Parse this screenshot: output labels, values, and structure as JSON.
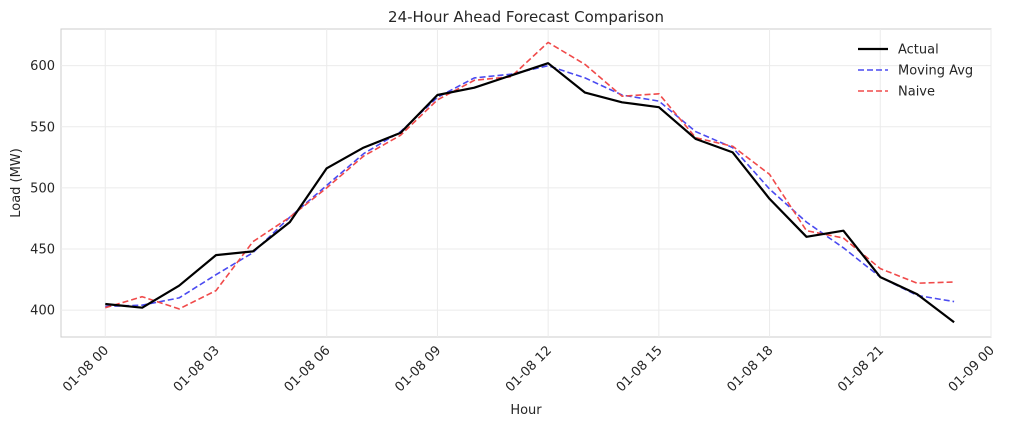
{
  "chart_data": {
    "type": "line",
    "title": "24-Hour Ahead Forecast Comparison",
    "xlabel": "Hour",
    "ylabel": "Load (MW)",
    "x": [
      "01-08 00",
      "01-08 01",
      "01-08 02",
      "01-08 03",
      "01-08 04",
      "01-08 05",
      "01-08 06",
      "01-08 07",
      "01-08 08",
      "01-08 09",
      "01-08 10",
      "01-08 11",
      "01-08 12",
      "01-08 13",
      "01-08 14",
      "01-08 15",
      "01-08 16",
      "01-08 17",
      "01-08 18",
      "01-08 19",
      "01-08 20",
      "01-08 21",
      "01-08 22",
      "01-08 23"
    ],
    "xlim": [
      "01-07 22.8",
      "01-09 00"
    ],
    "x_ticks": [
      "01-08 00",
      "01-08 03",
      "01-08 06",
      "01-08 09",
      "01-08 12",
      "01-08 15",
      "01-08 18",
      "01-08 21",
      "01-09 00"
    ],
    "x_tick_hours": [
      0,
      3,
      6,
      9,
      12,
      15,
      18,
      21,
      24
    ],
    "ylim": [
      378,
      630
    ],
    "y_ticks": [
      400,
      450,
      500,
      550,
      600
    ],
    "grid": true,
    "legend_position": "top-right",
    "series": [
      {
        "name": "Actual",
        "color": "#000000",
        "style": "solid",
        "values": [
          405,
          402,
          420,
          445,
          448,
          472,
          516,
          533,
          545,
          576,
          582,
          592,
          602,
          578,
          570,
          566,
          540,
          529,
          491,
          460,
          465,
          427,
          413,
          390
        ]
      },
      {
        "name": "Moving Avg",
        "color": "#4a4af0",
        "style": "dashed",
        "values": [
          403,
          404,
          410,
          429,
          447,
          476,
          502,
          528,
          546,
          574,
          590,
          593,
          600,
          590,
          576,
          571,
          546,
          533,
          499,
          472,
          451,
          427,
          412,
          407
        ]
      },
      {
        "name": "Naive",
        "color": "#f04a4a",
        "style": "dashed",
        "values": [
          402,
          411,
          401,
          416,
          456,
          476,
          500,
          526,
          543,
          572,
          588,
          591,
          619,
          601,
          575,
          577,
          541,
          534,
          511,
          465,
          459,
          434,
          422,
          423
        ]
      }
    ]
  }
}
